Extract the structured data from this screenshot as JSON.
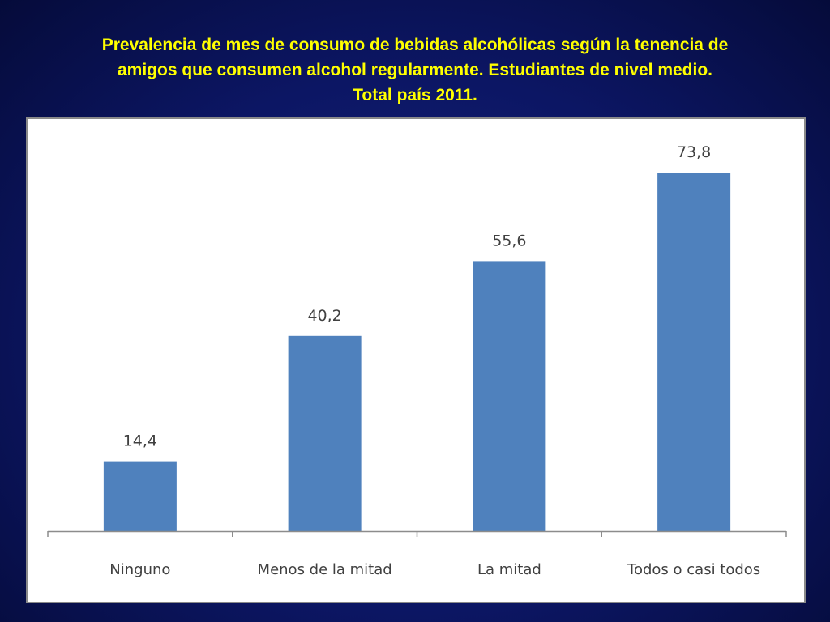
{
  "slide": {
    "title_lines": [
      "Prevalencia de mes de consumo de bebidas alcohólicas según la tenencia de",
      "amigos que consumen alcohol regularmente. Estudiantes de nivel medio.",
      "Total país 2011."
    ]
  },
  "colors": {
    "background": "#0c1664",
    "title": "#ffff00",
    "bar": "#4f81bd"
  },
  "chart_data": {
    "type": "bar",
    "title": "Prevalencia de mes de consumo de bebidas alcohólicas según la tenencia de amigos que consumen alcohol regularmente. Estudiantes de nivel medio. Total país 2011.",
    "categories": [
      "Ninguno",
      "Menos de la mitad",
      "La mitad",
      "Todos o casi todos"
    ],
    "values": [
      14.4,
      40.2,
      55.6,
      73.8
    ],
    "data_labels": [
      "14,4",
      "40,2",
      "55,6",
      "73,8"
    ],
    "xlabel": "",
    "ylabel": "",
    "ylim": [
      0,
      80
    ],
    "grid": false,
    "legend": "none"
  }
}
